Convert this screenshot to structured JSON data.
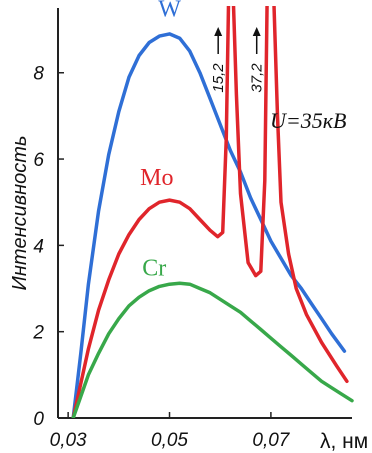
{
  "chart_data": {
    "type": "line",
    "title": "",
    "xlabel": "λ, нм",
    "ylabel": "Интенсивность",
    "xlim": [
      0.028,
      0.086
    ],
    "ylim": [
      0,
      9.5
    ],
    "x_ticks": [
      {
        "value": 0.03,
        "label": "0,03"
      },
      {
        "value": 0.05,
        "label": "0,05"
      },
      {
        "value": 0.07,
        "label": "0,07"
      }
    ],
    "y_ticks": [
      {
        "value": 0,
        "label": "0"
      },
      {
        "value": 2,
        "label": "2"
      },
      {
        "value": 4,
        "label": "4"
      },
      {
        "value": 6,
        "label": "6"
      },
      {
        "value": 8,
        "label": "8"
      }
    ],
    "grid": false,
    "annotation": "U=35кВ",
    "series": [
      {
        "name": "W",
        "color": "#2f6fd6",
        "label_at": [
          0.05,
          9.3
        ],
        "points": [
          [
            0.031,
            0.0
          ],
          [
            0.0325,
            1.5
          ],
          [
            0.034,
            3.1
          ],
          [
            0.036,
            4.8
          ],
          [
            0.038,
            6.1
          ],
          [
            0.04,
            7.1
          ],
          [
            0.042,
            7.9
          ],
          [
            0.044,
            8.4
          ],
          [
            0.046,
            8.7
          ],
          [
            0.048,
            8.85
          ],
          [
            0.05,
            8.9
          ],
          [
            0.052,
            8.8
          ],
          [
            0.054,
            8.5
          ],
          [
            0.056,
            8.0
          ],
          [
            0.058,
            7.4
          ],
          [
            0.06,
            6.8
          ],
          [
            0.062,
            6.2
          ],
          [
            0.064,
            5.7
          ],
          [
            0.066,
            5.1
          ],
          [
            0.068,
            4.6
          ],
          [
            0.07,
            4.1
          ],
          [
            0.072,
            3.7
          ],
          [
            0.074,
            3.3
          ],
          [
            0.076,
            3.0
          ],
          [
            0.078,
            2.65
          ],
          [
            0.08,
            2.3
          ],
          [
            0.082,
            1.95
          ],
          [
            0.0845,
            1.55
          ]
        ]
      },
      {
        "name": "Mo",
        "color": "#e0252b",
        "label_at": [
          0.0475,
          5.4
        ],
        "points": [
          [
            0.031,
            0.0
          ],
          [
            0.0325,
            0.8
          ],
          [
            0.034,
            1.6
          ],
          [
            0.036,
            2.5
          ],
          [
            0.038,
            3.2
          ],
          [
            0.04,
            3.8
          ],
          [
            0.042,
            4.25
          ],
          [
            0.044,
            4.6
          ],
          [
            0.046,
            4.85
          ],
          [
            0.048,
            5.0
          ],
          [
            0.05,
            5.05
          ],
          [
            0.052,
            5.0
          ],
          [
            0.054,
            4.85
          ],
          [
            0.056,
            4.6
          ],
          [
            0.058,
            4.35
          ],
          [
            0.0595,
            4.2
          ],
          [
            0.0605,
            4.3
          ],
          [
            0.0612,
            6.5
          ],
          [
            0.0617,
            10.0
          ],
          [
            0.0625,
            10.0
          ],
          [
            0.0632,
            7.5
          ],
          [
            0.064,
            5.2
          ],
          [
            0.0655,
            3.6
          ],
          [
            0.067,
            3.3
          ],
          [
            0.068,
            3.4
          ],
          [
            0.0688,
            5.5
          ],
          [
            0.0693,
            10.0
          ],
          [
            0.0705,
            10.0
          ],
          [
            0.0713,
            7.0
          ],
          [
            0.072,
            5.0
          ],
          [
            0.0735,
            3.8
          ],
          [
            0.075,
            3.0
          ],
          [
            0.077,
            2.4
          ],
          [
            0.08,
            1.75
          ],
          [
            0.083,
            1.2
          ],
          [
            0.085,
            0.85
          ]
        ]
      },
      {
        "name": "Cr",
        "color": "#38a84a",
        "label_at": [
          0.047,
          3.3
        ],
        "points": [
          [
            0.031,
            0.0
          ],
          [
            0.0325,
            0.5
          ],
          [
            0.034,
            1.0
          ],
          [
            0.036,
            1.5
          ],
          [
            0.038,
            1.95
          ],
          [
            0.04,
            2.3
          ],
          [
            0.042,
            2.6
          ],
          [
            0.044,
            2.8
          ],
          [
            0.046,
            2.95
          ],
          [
            0.048,
            3.05
          ],
          [
            0.05,
            3.1
          ],
          [
            0.052,
            3.12
          ],
          [
            0.054,
            3.1
          ],
          [
            0.056,
            3.0
          ],
          [
            0.058,
            2.9
          ],
          [
            0.06,
            2.75
          ],
          [
            0.062,
            2.6
          ],
          [
            0.064,
            2.45
          ],
          [
            0.066,
            2.25
          ],
          [
            0.068,
            2.05
          ],
          [
            0.07,
            1.85
          ],
          [
            0.072,
            1.65
          ],
          [
            0.074,
            1.45
          ],
          [
            0.076,
            1.25
          ],
          [
            0.078,
            1.05
          ],
          [
            0.08,
            0.85
          ],
          [
            0.082,
            0.7
          ],
          [
            0.084,
            0.55
          ],
          [
            0.086,
            0.4
          ]
        ]
      }
    ],
    "peaks": [
      {
        "x": 0.0596,
        "label": "15,2"
      },
      {
        "x": 0.0672,
        "label": "37,2"
      }
    ]
  }
}
